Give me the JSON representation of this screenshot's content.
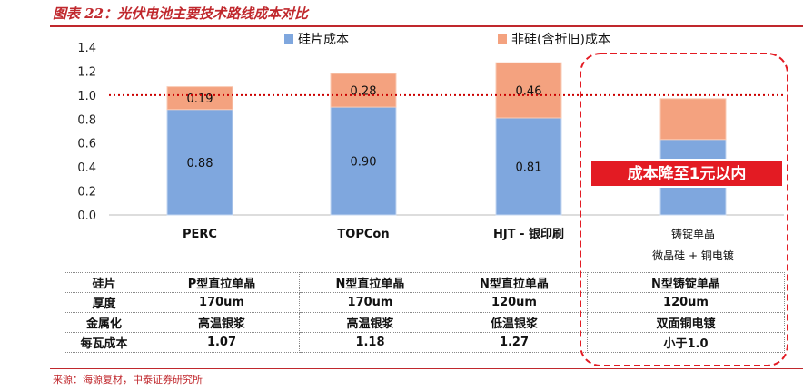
{
  "title": "图表 22：光伏电池主要技术路线成本对比",
  "source": "来源：海源复材，中泰证券研究所",
  "colors": {
    "silicon": "#7fa7de",
    "non_silicon": "#f4a27f",
    "accent": "#e31b23"
  },
  "badge": "成本降至1元以内",
  "chart_data": {
    "type": "bar",
    "stacked": true,
    "categories": [
      "PERC",
      "TOPCon",
      "HJT - 银印刷",
      "铸锭单晶 微晶硅 + 铜电镀"
    ],
    "category_lines": [
      [
        "PERC"
      ],
      [
        "TOPCon"
      ],
      [
        "HJT - 银印刷"
      ],
      [
        "铸锭单晶",
        "微晶硅 + 铜电镀"
      ]
    ],
    "series": [
      {
        "name": "硅片成本",
        "values": [
          0.88,
          0.9,
          0.81,
          0.63
        ],
        "labels": [
          "0.88",
          "0.90",
          "0.81",
          ""
        ]
      },
      {
        "name": "非硅(含折旧)成本",
        "values": [
          0.19,
          0.28,
          0.46,
          0.34
        ],
        "labels": [
          "0.19",
          "0.28",
          "0.46",
          ""
        ]
      }
    ],
    "ylim": [
      0,
      1.4
    ],
    "yticks": [
      "0.0",
      "0.2",
      "0.4",
      "0.6",
      "0.8",
      "1.0",
      "1.2",
      "1.4"
    ],
    "reference_line": 1.0,
    "legend_position": "top",
    "grid": false
  },
  "table": {
    "rows": [
      [
        "硅片",
        "P型直拉单晶",
        "N型直拉单晶",
        "N型直拉单晶",
        "N型铸锭单晶"
      ],
      [
        "厚度",
        "170um",
        "170um",
        "120um",
        "120um"
      ],
      [
        "金属化",
        "高温银浆",
        "高温银浆",
        "低温银浆",
        "双面铜电镀"
      ],
      [
        "每瓦成本",
        "1.07",
        "1.18",
        "1.27",
        "小于1.0"
      ]
    ]
  }
}
